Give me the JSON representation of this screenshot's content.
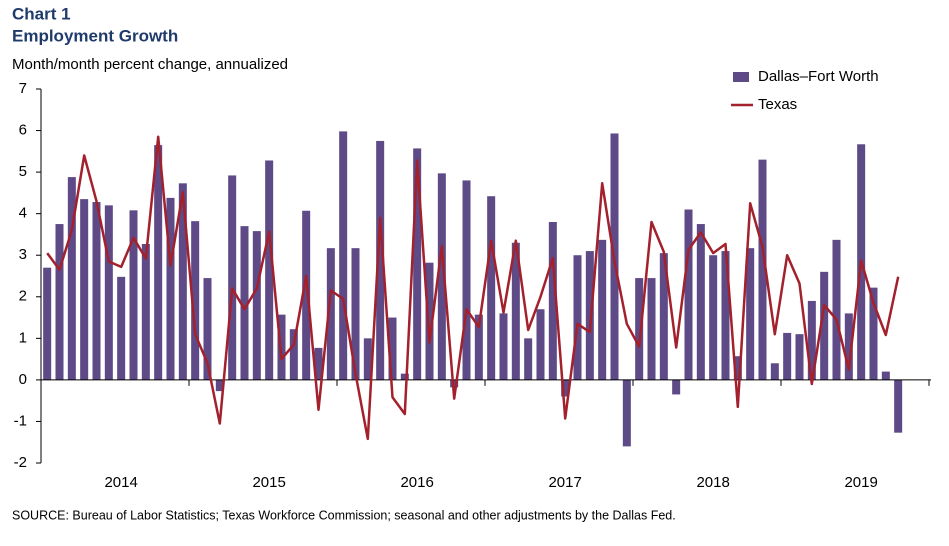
{
  "chart_data": {
    "type": "bar_line",
    "title": "Chart 1",
    "subtitle": "Employment Growth",
    "y_axis_label": "Month/month  percent change, annualized",
    "source": "SOURCE: Bureau of Labor Statistics; Texas Workforce Commission; seasonal and other adjustments by the Dallas Fed.",
    "categories": [
      null,
      null,
      null,
      null,
      null,
      null,
      "2014",
      null,
      null,
      null,
      null,
      null,
      null,
      null,
      null,
      null,
      null,
      null,
      "2015",
      null,
      null,
      null,
      null,
      null,
      null,
      null,
      null,
      null,
      null,
      null,
      "2016",
      null,
      null,
      null,
      null,
      null,
      null,
      null,
      null,
      null,
      null,
      null,
      "2017",
      null,
      null,
      null,
      null,
      null,
      null,
      null,
      null,
      null,
      null,
      null,
      "2018",
      null,
      null,
      null,
      null,
      null,
      null,
      null,
      null,
      null,
      null,
      null,
      "2019",
      null,
      null,
      null
    ],
    "series": [
      {
        "name": "Dallas–Fort Worth",
        "kind": "bar",
        "color": "#5e4a86",
        "values": [
          2.7,
          3.75,
          4.88,
          4.35,
          4.28,
          4.2,
          2.48,
          4.08,
          3.27,
          5.65,
          4.38,
          4.73,
          3.82,
          2.45,
          -0.27,
          4.92,
          3.7,
          3.58,
          5.28,
          1.57,
          1.22,
          4.07,
          0.77,
          3.17,
          5.98,
          3.17,
          1.0,
          5.75,
          1.5,
          0.15,
          5.57,
          2.82,
          4.97,
          -0.18,
          4.8,
          1.57,
          4.42,
          1.6,
          3.3,
          1.0,
          1.7,
          3.8,
          -0.4,
          3.0,
          3.1,
          3.37,
          5.93,
          -1.6,
          2.45,
          2.45,
          3.05,
          -0.35,
          4.1,
          3.75,
          3.0,
          3.1,
          0.57,
          3.17,
          5.3,
          0.4,
          1.13,
          1.1,
          1.9,
          2.6,
          3.37,
          1.6,
          5.67,
          2.22,
          0.2,
          -1.27
        ]
      },
      {
        "name": "Texas",
        "kind": "line",
        "color": "#a3212c",
        "values": [
          3.05,
          2.65,
          3.6,
          5.4,
          4.3,
          2.85,
          2.72,
          3.42,
          2.92,
          5.85,
          2.75,
          4.52,
          1.1,
          0.4,
          -1.05,
          2.2,
          1.7,
          2.2,
          3.57,
          0.5,
          0.85,
          2.5,
          -0.72,
          2.15,
          1.95,
          0.15,
          -1.42,
          3.9,
          -0.42,
          -0.82,
          5.28,
          0.9,
          3.22,
          -0.45,
          1.7,
          1.27,
          3.35,
          1.62,
          3.35,
          1.2,
          2.0,
          2.93,
          -0.93,
          1.35,
          1.15,
          4.73,
          2.85,
          1.35,
          0.8,
          3.8,
          3.08,
          0.78,
          3.13,
          3.55,
          3.05,
          3.27,
          -0.65,
          4.25,
          3.2,
          1.1,
          3.0,
          2.32,
          -0.1,
          1.8,
          1.45,
          0.25,
          2.87,
          1.85,
          1.08,
          2.48
        ]
      }
    ],
    "ylim": [
      -2,
      7
    ],
    "yticks": [
      -2,
      -1,
      0,
      1,
      2,
      3,
      4,
      5,
      6,
      7
    ],
    "legend": "top-right"
  }
}
